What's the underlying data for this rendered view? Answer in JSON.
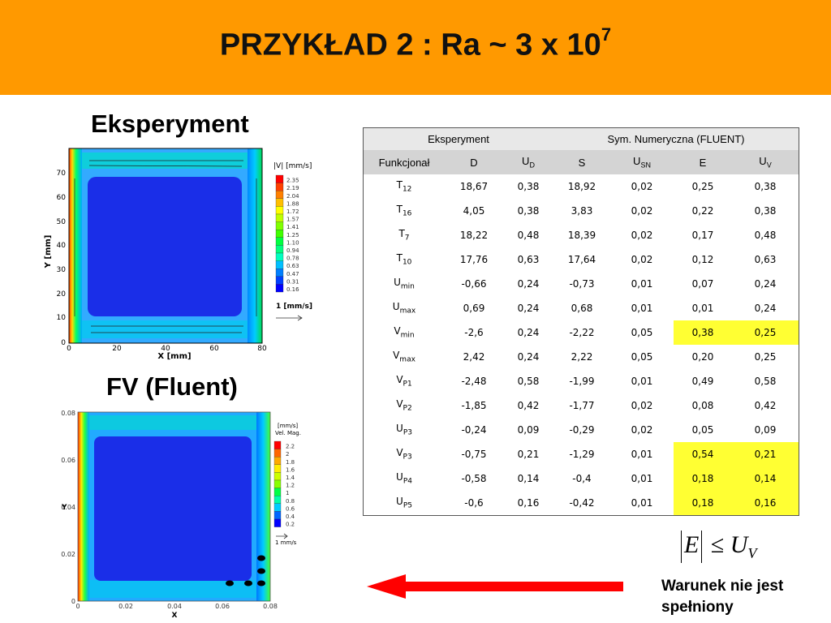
{
  "slide": {
    "title_main": "PRZYKŁAD 2 : Ra ~ 3 x 10",
    "title_exp": "7",
    "label_experiment": "Eksperyment",
    "label_fv": "FV (Fluent)",
    "note": "Warunek nie jest spełniony"
  },
  "plot_experiment": {
    "y_title": "Y [mm]",
    "x_title": "X [mm]",
    "y_ticks": [
      "70",
      "60",
      "50",
      "40",
      "30",
      "20",
      "10",
      "0"
    ],
    "x_ticks": [
      "0",
      "20",
      "40",
      "60",
      "80"
    ],
    "legend_title": "|V| [mm/s]",
    "legend_values": [
      "2.35",
      "2.19",
      "2.04",
      "1.88",
      "1.72",
      "1.57",
      "1.41",
      "1.25",
      "1.10",
      "0.94",
      "0.78",
      "0.63",
      "0.47",
      "0.31",
      "0.16"
    ],
    "legend_colors": [
      "#ff0000",
      "#ff4000",
      "#ff8000",
      "#ffbf00",
      "#ffff00",
      "#bfff00",
      "#80ff00",
      "#40ff00",
      "#00ff40",
      "#00ff80",
      "#00ffbf",
      "#00bfff",
      "#0080ff",
      "#0040ff",
      "#0000ff"
    ],
    "ref_label": "1 [mm/s]"
  },
  "plot_fv": {
    "x_title": "X",
    "y_title": "Y",
    "y_ticks": [
      "0.08",
      "0.06",
      "0.04",
      "0.02",
      "0"
    ],
    "x_ticks": [
      "0",
      "0.02",
      "0.04",
      "0.06",
      "0.08"
    ],
    "legend_unit": "[mm/s]",
    "legend_title": "Vel. Mag.",
    "legend_values": [
      "2.2",
      "2",
      "1.8",
      "1.6",
      "1.4",
      "1.2",
      "1",
      "0.8",
      "0.6",
      "0.4",
      "0.2"
    ],
    "legend_colors": [
      "#ff0000",
      "#ff6600",
      "#ffaa00",
      "#ffee00",
      "#ccff00",
      "#88ff00",
      "#00ff44",
      "#00ffaa",
      "#00ccff",
      "#0066ff",
      "#0000ff"
    ],
    "ref_label": "1 mm/s"
  },
  "table": {
    "group_headers": [
      "Eksperyment",
      "Sym. Numeryczna (FLUENT)"
    ],
    "columns": [
      {
        "main": "Funkcjonał",
        "sub": ""
      },
      {
        "main": "D",
        "sub": ""
      },
      {
        "main": "U",
        "sub": "D"
      },
      {
        "main": "S",
        "sub": ""
      },
      {
        "main": "U",
        "sub": "SN"
      },
      {
        "main": "E",
        "sub": ""
      },
      {
        "main": "U",
        "sub": "V"
      }
    ],
    "rows": [
      {
        "name": "T",
        "sub": "12",
        "values": [
          "18,67",
          "0,38",
          "18,92",
          "0,02",
          "0,25",
          "0,38"
        ],
        "highlight": false
      },
      {
        "name": "T",
        "sub": "16",
        "values": [
          "4,05",
          "0,38",
          "3,83",
          "0,02",
          "0,22",
          "0,38"
        ],
        "highlight": false
      },
      {
        "name": "T",
        "sub": "7",
        "values": [
          "18,22",
          "0,48",
          "18,39",
          "0,02",
          "0,17",
          "0,48"
        ],
        "highlight": false
      },
      {
        "name": "T",
        "sub": "10",
        "values": [
          "17,76",
          "0,63",
          "17,64",
          "0,02",
          "0,12",
          "0,63"
        ],
        "highlight": false
      },
      {
        "name": "U",
        "sub": "min",
        "values": [
          "-0,66",
          "0,24",
          "-0,73",
          "0,01",
          "0,07",
          "0,24"
        ],
        "highlight": false
      },
      {
        "name": "U",
        "sub": "max",
        "values": [
          "0,69",
          "0,24",
          "0,68",
          "0,01",
          "0,01",
          "0,24"
        ],
        "highlight": false
      },
      {
        "name": "V",
        "sub": "min",
        "values": [
          "-2,6",
          "0,24",
          "-2,22",
          "0,05",
          "0,38",
          "0,25"
        ],
        "highlight": true
      },
      {
        "name": "V",
        "sub": "max",
        "values": [
          "2,42",
          "0,24",
          "2,22",
          "0,05",
          "0,20",
          "0,25"
        ],
        "highlight": false
      },
      {
        "name": "V",
        "sub": "P1",
        "values": [
          "-2,48",
          "0,58",
          "-1,99",
          "0,01",
          "0,49",
          "0,58"
        ],
        "highlight": false
      },
      {
        "name": "V",
        "sub": "P2",
        "values": [
          "-1,85",
          "0,42",
          "-1,77",
          "0,02",
          "0,08",
          "0,42"
        ],
        "highlight": false
      },
      {
        "name": "U",
        "sub": "P3",
        "values": [
          "-0,24",
          "0,09",
          "-0,29",
          "0,02",
          "0,05",
          "0,09"
        ],
        "highlight": false
      },
      {
        "name": "V",
        "sub": "P3",
        "values": [
          "-0,75",
          "0,21",
          "-1,29",
          "0,01",
          "0,54",
          "0,21"
        ],
        "highlight": true
      },
      {
        "name": "U",
        "sub": "P4",
        "values": [
          "-0,58",
          "0,14",
          "-0,4",
          "0,01",
          "0,18",
          "0,14"
        ],
        "highlight": true
      },
      {
        "name": "U",
        "sub": "P5",
        "values": [
          "-0,6",
          "0,16",
          "-0,42",
          "0,01",
          "0,18",
          "0,16"
        ],
        "highlight": true
      }
    ]
  },
  "formula": {
    "lhs": "E",
    "op": "≤",
    "rhs": "U",
    "rhs_sub": "V"
  },
  "colors": {
    "header_bg": "#ff9900",
    "highlight": "#ffff33",
    "arrow": "#ff0000",
    "cavity": "#1a2ee8"
  }
}
